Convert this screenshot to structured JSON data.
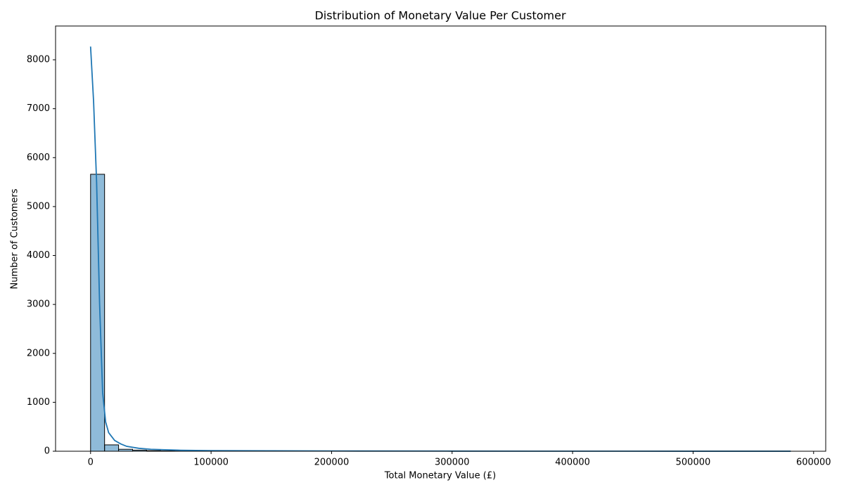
{
  "chart_data": {
    "type": "histogram",
    "title": "Distribution of Monetary Value Per Customer",
    "x_label": "Total Monetary Value (£)",
    "y_label": "Number of Customers",
    "bins": [
      0,
      11620,
      23240,
      34860,
      46480,
      58100,
      69720,
      81340,
      92960,
      104580,
      116200,
      127820,
      139440,
      151060,
      162680,
      174300,
      185920,
      197540,
      209160,
      220780,
      232400,
      244020,
      255640,
      267260,
      278880,
      290500,
      302120,
      313740,
      325360,
      336980,
      348600,
      360220,
      371840,
      383460,
      395080,
      406700,
      418320,
      429940,
      441560,
      453180,
      464800,
      476420,
      488040,
      499660,
      511280,
      522900,
      534520,
      546140,
      557760,
      569380,
      581000
    ],
    "counts": [
      5660,
      130,
      40,
      22,
      12,
      8,
      6,
      4,
      3,
      3,
      2,
      2,
      1,
      1,
      1,
      1,
      0,
      1,
      0,
      1,
      0,
      0,
      0,
      0,
      0,
      1,
      0,
      0,
      0,
      0,
      0,
      0,
      0,
      0,
      0,
      0,
      0,
      0,
      0,
      0,
      0,
      0,
      0,
      0,
      0,
      0,
      0,
      0,
      0,
      1
    ],
    "color": "#1f77b4",
    "kde": {
      "color": "#1f77b4",
      "x": [
        0,
        2500,
        5000,
        7500,
        10000,
        12500,
        15000,
        20000,
        25000,
        30000,
        40000,
        50000,
        75000,
        100000,
        150000,
        200000,
        300000,
        400000,
        500000,
        581000
      ],
      "values": [
        8270,
        7150,
        5500,
        3000,
        1200,
        600,
        380,
        220,
        150,
        100,
        60,
        40,
        20,
        12,
        8,
        5,
        3,
        2,
        1,
        1
      ]
    },
    "xlim": [
      -29050,
      610050
    ],
    "ylim": [
      0,
      8690
    ],
    "xticks": [
      0,
      100000,
      200000,
      300000,
      400000,
      500000,
      600000
    ],
    "yticks": [
      0,
      1000,
      2000,
      3000,
      4000,
      5000,
      6000,
      7000,
      8000
    ],
    "grid": false
  }
}
